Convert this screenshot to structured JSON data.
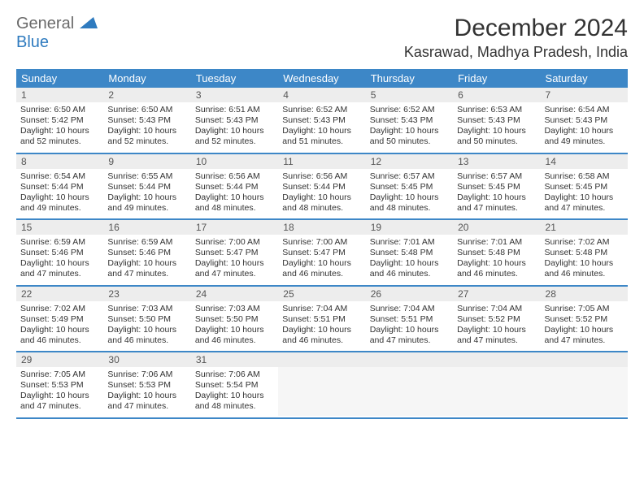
{
  "logo": {
    "text1": "General",
    "text2": "Blue"
  },
  "title": "December 2024",
  "location": "Kasrawad, Madhya Pradesh, India",
  "colors": {
    "header_bg": "#3d87c7",
    "header_text": "#ffffff",
    "daynum_bg": "#ededed",
    "border": "#3d87c7",
    "logo_gray": "#6a6a6a",
    "logo_blue": "#2f7bbf"
  },
  "day_headers": [
    "Sunday",
    "Monday",
    "Tuesday",
    "Wednesday",
    "Thursday",
    "Friday",
    "Saturday"
  ],
  "weeks": [
    [
      {
        "n": "1",
        "sr": "6:50 AM",
        "ss": "5:42 PM",
        "dl": "10 hours and 52 minutes."
      },
      {
        "n": "2",
        "sr": "6:50 AM",
        "ss": "5:43 PM",
        "dl": "10 hours and 52 minutes."
      },
      {
        "n": "3",
        "sr": "6:51 AM",
        "ss": "5:43 PM",
        "dl": "10 hours and 52 minutes."
      },
      {
        "n": "4",
        "sr": "6:52 AM",
        "ss": "5:43 PM",
        "dl": "10 hours and 51 minutes."
      },
      {
        "n": "5",
        "sr": "6:52 AM",
        "ss": "5:43 PM",
        "dl": "10 hours and 50 minutes."
      },
      {
        "n": "6",
        "sr": "6:53 AM",
        "ss": "5:43 PM",
        "dl": "10 hours and 50 minutes."
      },
      {
        "n": "7",
        "sr": "6:54 AM",
        "ss": "5:43 PM",
        "dl": "10 hours and 49 minutes."
      }
    ],
    [
      {
        "n": "8",
        "sr": "6:54 AM",
        "ss": "5:44 PM",
        "dl": "10 hours and 49 minutes."
      },
      {
        "n": "9",
        "sr": "6:55 AM",
        "ss": "5:44 PM",
        "dl": "10 hours and 49 minutes."
      },
      {
        "n": "10",
        "sr": "6:56 AM",
        "ss": "5:44 PM",
        "dl": "10 hours and 48 minutes."
      },
      {
        "n": "11",
        "sr": "6:56 AM",
        "ss": "5:44 PM",
        "dl": "10 hours and 48 minutes."
      },
      {
        "n": "12",
        "sr": "6:57 AM",
        "ss": "5:45 PM",
        "dl": "10 hours and 48 minutes."
      },
      {
        "n": "13",
        "sr": "6:57 AM",
        "ss": "5:45 PM",
        "dl": "10 hours and 47 minutes."
      },
      {
        "n": "14",
        "sr": "6:58 AM",
        "ss": "5:45 PM",
        "dl": "10 hours and 47 minutes."
      }
    ],
    [
      {
        "n": "15",
        "sr": "6:59 AM",
        "ss": "5:46 PM",
        "dl": "10 hours and 47 minutes."
      },
      {
        "n": "16",
        "sr": "6:59 AM",
        "ss": "5:46 PM",
        "dl": "10 hours and 47 minutes."
      },
      {
        "n": "17",
        "sr": "7:00 AM",
        "ss": "5:47 PM",
        "dl": "10 hours and 47 minutes."
      },
      {
        "n": "18",
        "sr": "7:00 AM",
        "ss": "5:47 PM",
        "dl": "10 hours and 46 minutes."
      },
      {
        "n": "19",
        "sr": "7:01 AM",
        "ss": "5:48 PM",
        "dl": "10 hours and 46 minutes."
      },
      {
        "n": "20",
        "sr": "7:01 AM",
        "ss": "5:48 PM",
        "dl": "10 hours and 46 minutes."
      },
      {
        "n": "21",
        "sr": "7:02 AM",
        "ss": "5:48 PM",
        "dl": "10 hours and 46 minutes."
      }
    ],
    [
      {
        "n": "22",
        "sr": "7:02 AM",
        "ss": "5:49 PM",
        "dl": "10 hours and 46 minutes."
      },
      {
        "n": "23",
        "sr": "7:03 AM",
        "ss": "5:50 PM",
        "dl": "10 hours and 46 minutes."
      },
      {
        "n": "24",
        "sr": "7:03 AM",
        "ss": "5:50 PM",
        "dl": "10 hours and 46 minutes."
      },
      {
        "n": "25",
        "sr": "7:04 AM",
        "ss": "5:51 PM",
        "dl": "10 hours and 46 minutes."
      },
      {
        "n": "26",
        "sr": "7:04 AM",
        "ss": "5:51 PM",
        "dl": "10 hours and 47 minutes."
      },
      {
        "n": "27",
        "sr": "7:04 AM",
        "ss": "5:52 PM",
        "dl": "10 hours and 47 minutes."
      },
      {
        "n": "28",
        "sr": "7:05 AM",
        "ss": "5:52 PM",
        "dl": "10 hours and 47 minutes."
      }
    ],
    [
      {
        "n": "29",
        "sr": "7:05 AM",
        "ss": "5:53 PM",
        "dl": "10 hours and 47 minutes."
      },
      {
        "n": "30",
        "sr": "7:06 AM",
        "ss": "5:53 PM",
        "dl": "10 hours and 47 minutes."
      },
      {
        "n": "31",
        "sr": "7:06 AM",
        "ss": "5:54 PM",
        "dl": "10 hours and 48 minutes."
      },
      null,
      null,
      null,
      null
    ]
  ],
  "labels": {
    "sunrise": "Sunrise:",
    "sunset": "Sunset:",
    "daylight": "Daylight:"
  }
}
